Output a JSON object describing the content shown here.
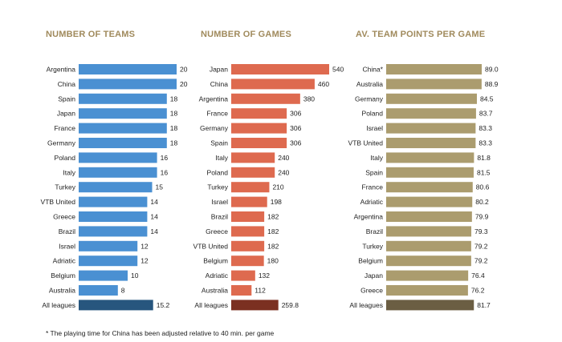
{
  "chart_data": [
    {
      "type": "bar",
      "orientation": "horizontal",
      "title": "NUMBER OF TEAMS",
      "categories": [
        "Argentina",
        "China",
        "Spain",
        "Japan",
        "France",
        "Germany",
        "Poland",
        "Italy",
        "Turkey",
        "VTB United",
        "Greece",
        "Brazil",
        "Israel",
        "Adriatic",
        "Belgium",
        "Australia",
        "All leagues"
      ],
      "values": [
        20,
        20,
        18,
        18,
        18,
        18,
        16,
        16,
        15,
        14,
        14,
        14,
        12,
        12,
        10,
        8,
        15.2
      ],
      "value_labels": [
        "20",
        "20",
        "18",
        "18",
        "18",
        "18",
        "16",
        "16",
        "15",
        "14",
        "14",
        "14",
        "12",
        "12",
        "10",
        "8",
        "15.2"
      ],
      "xlim": [
        0,
        20
      ],
      "color": "#4a90d2",
      "total_color": "#27567e"
    },
    {
      "type": "bar",
      "orientation": "horizontal",
      "title": "NUMBER OF GAMES",
      "categories": [
        "Japan",
        "China",
        "Argentina",
        "France",
        "Germany",
        "Spain",
        "Italy",
        "Poland",
        "Turkey",
        "Israel",
        "Brazil",
        "Greece",
        "VTB United",
        "Belgium",
        "Adriatic",
        "Australia",
        "All leagues"
      ],
      "values": [
        540,
        460,
        380,
        306,
        306,
        306,
        240,
        240,
        210,
        198,
        182,
        182,
        182,
        180,
        132,
        112,
        259.8
      ],
      "value_labels": [
        "540",
        "460",
        "380",
        "306",
        "306",
        "306",
        "240",
        "240",
        "210",
        "198",
        "182",
        "182",
        "182",
        "180",
        "132",
        "112",
        "259.8"
      ],
      "xlim": [
        0,
        540
      ],
      "color": "#de6a4f",
      "total_color": "#7b3021"
    },
    {
      "type": "bar",
      "orientation": "horizontal",
      "title": "AV. TEAM POINTS PER GAME",
      "categories": [
        "China*",
        "Australia",
        "Germany",
        "Poland",
        "Israel",
        "VTB United",
        "Italy",
        "Spain",
        "France",
        "Adriatic",
        "Argentina",
        "Brazil",
        "Turkey",
        "Belgium",
        "Japan",
        "Greece",
        "All leagues"
      ],
      "values": [
        89.0,
        88.9,
        84.5,
        83.7,
        83.3,
        83.3,
        81.8,
        81.5,
        80.6,
        80.2,
        79.9,
        79.3,
        79.2,
        79.2,
        76.4,
        76.2,
        81.7
      ],
      "value_labels": [
        "89.0",
        "88.9",
        "84.5",
        "83.7",
        "83.3",
        "83.3",
        "81.8",
        "81.5",
        "80.6",
        "80.2",
        "79.9",
        "79.3",
        "79.2",
        "79.2",
        "76.4",
        "76.2",
        "81.7"
      ],
      "xlim": [
        0,
        89
      ],
      "color": "#ab9c6e",
      "total_color": "#6b5e43"
    }
  ],
  "footnote": "* The playing time for China has been adjusted relative to 40 min. per game"
}
